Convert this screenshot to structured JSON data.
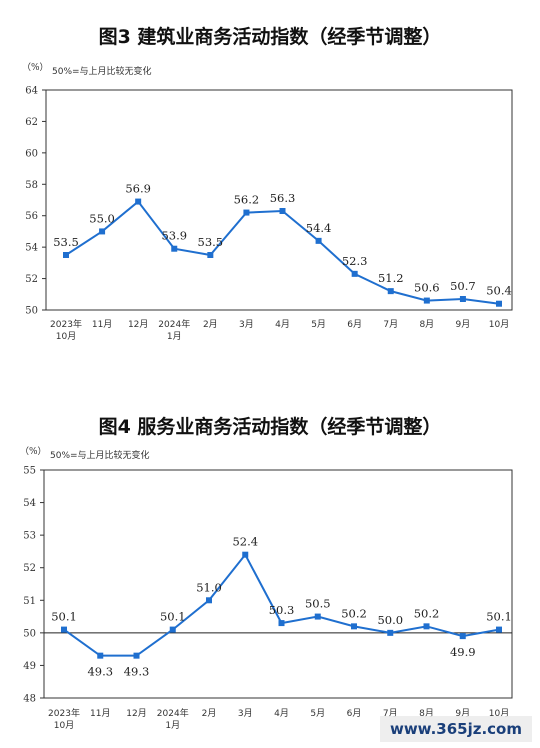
{
  "chart_data": [
    {
      "type": "line",
      "title": "图3  建筑业商务活动指数（经季节调整）",
      "unit_label": "（%）",
      "note": "50%=与上月比较无变化",
      "categories": [
        [
          "2023年",
          "10月"
        ],
        [
          "11月"
        ],
        [
          "12月"
        ],
        [
          "2024年",
          "1月"
        ],
        [
          "2月"
        ],
        [
          "3月"
        ],
        [
          "4月"
        ],
        [
          "5月"
        ],
        [
          "6月"
        ],
        [
          "7月"
        ],
        [
          "8月"
        ],
        [
          "9月"
        ],
        [
          "10月"
        ]
      ],
      "values": [
        53.5,
        55.0,
        56.9,
        53.9,
        53.5,
        56.2,
        56.3,
        54.4,
        52.3,
        51.2,
        50.6,
        50.7,
        50.4
      ],
      "value_labels": [
        "53.5",
        "55.0",
        "56.9",
        "53.9",
        "53.5",
        "56.2",
        "56.3",
        "54.4",
        "52.3",
        "51.2",
        "50.6",
        "50.7",
        "50.4"
      ],
      "ylim": [
        50,
        64
      ],
      "yticks": [
        "50",
        "52",
        "54",
        "56",
        "58",
        "60",
        "62",
        "64"
      ],
      "reference_line": null,
      "grid": false,
      "line_color": "#1f6fcf"
    },
    {
      "type": "line",
      "title": "图4  服务业商务活动指数（经季节调整）",
      "unit_label": "（%）",
      "note": "50%=与上月比较无变化",
      "categories": [
        [
          "2023年",
          "10月"
        ],
        [
          "11月"
        ],
        [
          "12月"
        ],
        [
          "2024年",
          "1月"
        ],
        [
          "2月"
        ],
        [
          "3月"
        ],
        [
          "4月"
        ],
        [
          "5月"
        ],
        [
          "6月"
        ],
        [
          "7月"
        ],
        [
          "8月"
        ],
        [
          "9月"
        ],
        [
          "10月"
        ]
      ],
      "values": [
        50.1,
        49.3,
        49.3,
        50.1,
        51.0,
        52.4,
        50.3,
        50.5,
        50.2,
        50.0,
        50.2,
        49.9,
        50.1
      ],
      "value_labels": [
        "50.1",
        "49.3",
        "49.3",
        "50.1",
        "51.0",
        "52.4",
        "50.3",
        "50.5",
        "50.2",
        "50.0",
        "50.2",
        "49.9",
        "50.1"
      ],
      "ylim": [
        48,
        55
      ],
      "yticks": [
        "48",
        "49",
        "50",
        "51",
        "52",
        "53",
        "54",
        "55"
      ],
      "reference_line": 50,
      "grid": false,
      "line_color": "#1f6fcf"
    }
  ],
  "watermark": "www.365jz.com"
}
